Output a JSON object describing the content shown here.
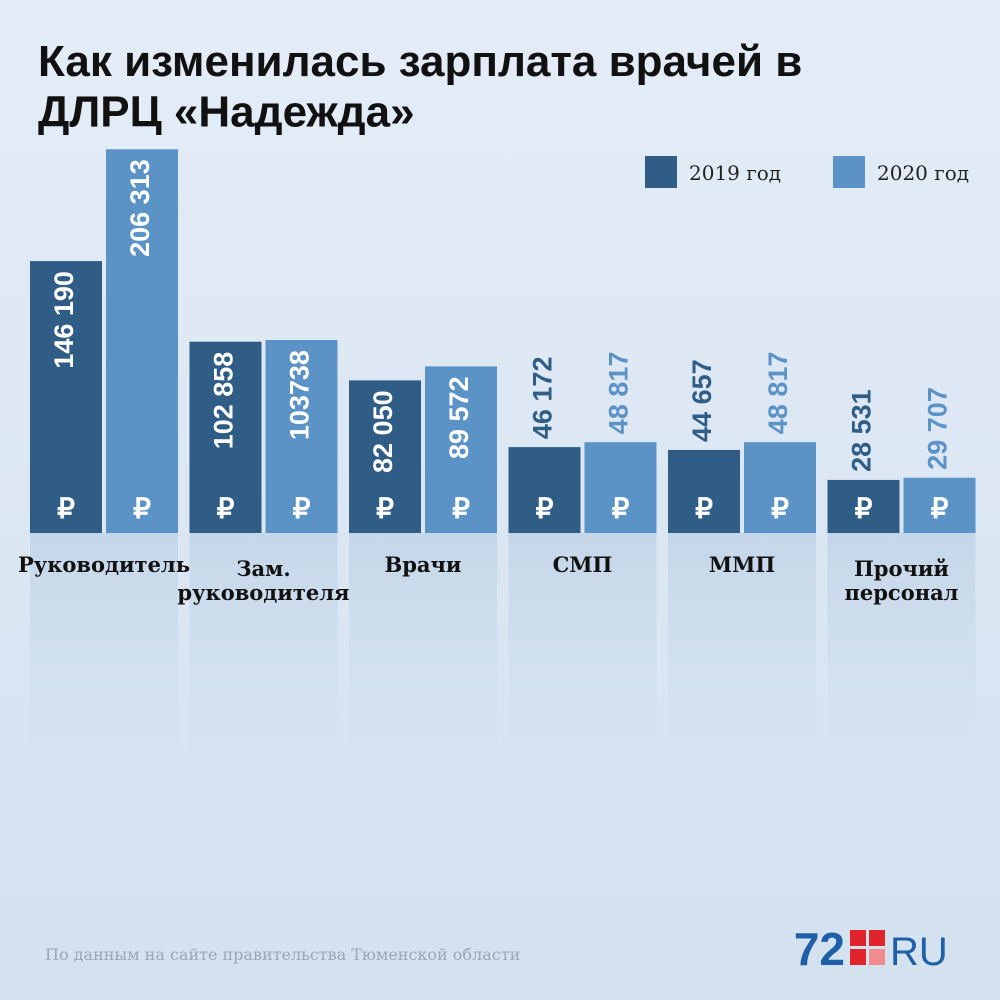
{
  "chart_data": {
    "type": "bar",
    "title": "Как изменилась зарплата врачей в\nДЛРЦ «Надежда»",
    "categories": [
      "Руководитель",
      "Зам.\nруководителя",
      "Врачи",
      "СМП",
      "ММП",
      "Прочий\nперсонал"
    ],
    "currency": "₽",
    "series": [
      {
        "name": "2019 год",
        "color": "#2f5d86",
        "values": [
          146190,
          102858,
          82050,
          46172,
          44657,
          28531
        ],
        "value_labels": [
          "146 190",
          "102 858",
          "82 050",
          "46 172",
          "44 657",
          "28 531"
        ]
      },
      {
        "name": "2020 год",
        "color": "#5b93c7",
        "values": [
          206313,
          103738,
          89572,
          48817,
          48817,
          29707
        ],
        "value_labels": [
          "206 313",
          "103738",
          "89 572",
          "48 817",
          "48 817",
          "29 707"
        ]
      }
    ],
    "legend": "top-right",
    "source": "По данным на сайте правительства Тюменской области",
    "logo": {
      "number": "72",
      "domain": "RU"
    }
  }
}
